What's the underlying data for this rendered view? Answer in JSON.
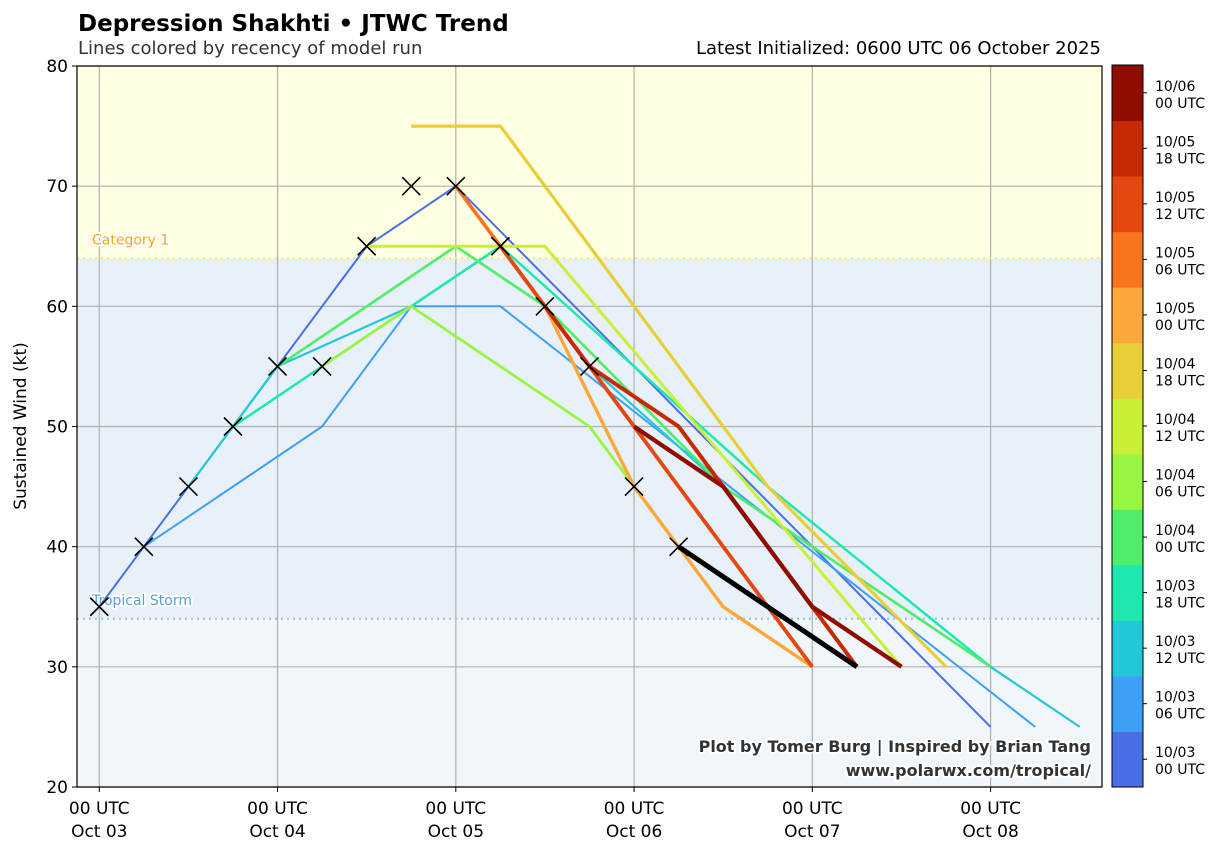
{
  "chart_data": {
    "type": "line",
    "title": "Depression Shakhti • JTWC Trend",
    "subtitle": "Lines colored by recency of model run",
    "right_title": "Latest Initialized: 0600 UTC 06 October 2025",
    "ylabel": "Sustained Wind (kt)",
    "xlabel": "",
    "ylim": [
      20,
      80
    ],
    "yticks": [
      20,
      30,
      40,
      50,
      60,
      70,
      80
    ],
    "x_unit": "hours since 00 UTC Oct 03",
    "xlim_hours": [
      -3,
      135
    ],
    "xticks": [
      {
        "hours": 0,
        "line1": "00 UTC",
        "line2": "Oct 03"
      },
      {
        "hours": 24,
        "line1": "00 UTC",
        "line2": "Oct 04"
      },
      {
        "hours": 48,
        "line1": "00 UTC",
        "line2": "Oct 05"
      },
      {
        "hours": 72,
        "line1": "00 UTC",
        "line2": "Oct 06"
      },
      {
        "hours": 96,
        "line1": "00 UTC",
        "line2": "Oct 07"
      },
      {
        "hours": 120,
        "line1": "00 UTC",
        "line2": "Oct 08"
      }
    ],
    "grid": true,
    "thresholds": [
      {
        "label": "Category 1",
        "value": 64,
        "color": "#f5a623",
        "line_color": "#f2ef5a",
        "band_color": "#ffffe4"
      },
      {
        "label": "Tropical Storm",
        "value": 34,
        "color": "#5a9fd6",
        "line_color": "#8ec0ea",
        "band_color": "#e8f1fa"
      }
    ],
    "below_ts_band_color": "#f1f6fb",
    "series": [
      {
        "name": "10/03 00 UTC",
        "color": "#4a6fe3",
        "width": 2,
        "points": [
          [
            0,
            35
          ],
          [
            6,
            40
          ],
          [
            12,
            45
          ],
          [
            18,
            50
          ],
          [
            24,
            55
          ],
          [
            36,
            65
          ],
          [
            48,
            70
          ],
          [
            120,
            25
          ]
        ]
      },
      {
        "name": "10/03 06 UTC",
        "color": "#3ea0f5",
        "width": 2,
        "points": [
          [
            6,
            40
          ],
          [
            30,
            50
          ],
          [
            42,
            60
          ],
          [
            54,
            60
          ],
          [
            126,
            25
          ]
        ]
      },
      {
        "name": "10/03 12 UTC",
        "color": "#22c8d8",
        "width": 2.2,
        "points": [
          [
            12,
            45
          ],
          [
            18,
            50
          ],
          [
            24,
            55
          ],
          [
            42,
            60
          ],
          [
            54,
            65
          ],
          [
            60,
            60
          ],
          [
            66,
            55
          ],
          [
            84,
            45
          ],
          [
            132,
            25
          ]
        ]
      },
      {
        "name": "10/03 18 UTC",
        "color": "#1ee8b0",
        "width": 2.5,
        "points": [
          [
            18,
            50
          ],
          [
            30,
            55
          ],
          [
            54,
            65
          ],
          [
            72,
            55
          ],
          [
            90,
            45
          ],
          [
            120,
            30
          ]
        ]
      },
      {
        "name": "10/04 00 UTC",
        "color": "#4eed6a",
        "width": 2.6,
        "points": [
          [
            24,
            55
          ],
          [
            48,
            65
          ],
          [
            60,
            60
          ],
          [
            84,
            45
          ],
          [
            120,
            30
          ]
        ]
      },
      {
        "name": "10/04 06 UTC",
        "color": "#98f542",
        "width": 2.8,
        "points": [
          [
            30,
            55
          ],
          [
            42,
            60
          ],
          [
            66,
            50
          ],
          [
            72,
            45
          ]
        ]
      },
      {
        "name": "10/04 12 UTC",
        "color": "#c9f035",
        "width": 3,
        "points": [
          [
            36,
            65
          ],
          [
            60,
            65
          ],
          [
            108,
            30
          ]
        ]
      },
      {
        "name": "10/04 18 UTC",
        "color": "#e8cf3a",
        "width": 3.2,
        "points": [
          [
            42,
            75
          ],
          [
            54,
            75
          ],
          [
            90,
            45
          ],
          [
            114,
            30
          ]
        ]
      },
      {
        "name": "10/05 00 UTC",
        "color": "#fba73a",
        "width": 3.4,
        "points": [
          [
            48,
            70
          ],
          [
            60,
            60
          ],
          [
            72,
            45
          ],
          [
            78,
            40
          ],
          [
            84,
            35
          ],
          [
            96,
            30
          ]
        ]
      },
      {
        "name": "10/05 06 UTC",
        "color": "#f8741f",
        "width": 3.6,
        "points": [
          [
            48,
            70
          ],
          [
            60,
            60
          ],
          [
            66,
            55
          ]
        ]
      },
      {
        "name": "10/05 12 UTC",
        "color": "#e3480f",
        "width": 3.8,
        "points": [
          [
            54,
            65
          ],
          [
            60,
            60
          ],
          [
            66,
            55
          ],
          [
            72,
            50
          ],
          [
            96,
            30
          ]
        ]
      },
      {
        "name": "10/05 18 UTC",
        "color": "#c42a06",
        "width": 4,
        "points": [
          [
            60,
            60
          ],
          [
            66,
            55
          ],
          [
            78,
            50
          ],
          [
            84,
            45
          ],
          [
            96,
            35
          ],
          [
            102,
            30
          ]
        ]
      },
      {
        "name": "10/06 00 UTC",
        "color": "#8f0c00",
        "width": 4.3,
        "points": [
          [
            72,
            50
          ],
          [
            84,
            45
          ],
          [
            96,
            35
          ],
          [
            108,
            30
          ]
        ]
      },
      {
        "name": "10/06 06 UTC",
        "color": "#000000",
        "width": 5,
        "points": [
          [
            78,
            40
          ],
          [
            102,
            30
          ]
        ]
      }
    ],
    "observed_markers": [
      [
        0,
        35
      ],
      [
        6,
        40
      ],
      [
        12,
        45
      ],
      [
        18,
        50
      ],
      [
        24,
        55
      ],
      [
        30,
        55
      ],
      [
        36,
        65
      ],
      [
        42,
        70
      ],
      [
        48,
        70
      ],
      [
        54,
        65
      ],
      [
        60,
        60
      ],
      [
        66,
        55
      ],
      [
        72,
        45
      ],
      [
        78,
        40
      ]
    ],
    "colorbar": {
      "labels": [
        [
          "10/03",
          "00 UTC"
        ],
        [
          "10/03",
          "06 UTC"
        ],
        [
          "10/03",
          "12 UTC"
        ],
        [
          "10/03",
          "18 UTC"
        ],
        [
          "10/04",
          "00 UTC"
        ],
        [
          "10/04",
          "06 UTC"
        ],
        [
          "10/04",
          "12 UTC"
        ],
        [
          "10/04",
          "18 UTC"
        ],
        [
          "10/05",
          "00 UTC"
        ],
        [
          "10/05",
          "06 UTC"
        ],
        [
          "10/05",
          "12 UTC"
        ],
        [
          "10/05",
          "18 UTC"
        ],
        [
          "10/06",
          "00 UTC"
        ]
      ],
      "colors": [
        "#4a6fe3",
        "#3ea0f5",
        "#22c8d8",
        "#1ee8b0",
        "#4eed6a",
        "#98f542",
        "#c9f035",
        "#e8cf3a",
        "#fba73a",
        "#f8741f",
        "#e3480f",
        "#c42a06",
        "#8f0c00"
      ]
    },
    "credits": [
      "Plot by Tomer Burg | Inspired by Brian Tang",
      "www.polarwx.com/tropical/"
    ]
  }
}
